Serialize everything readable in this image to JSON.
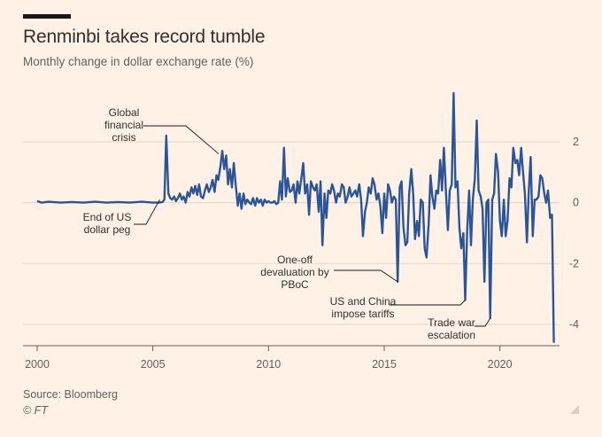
{
  "header": {
    "title": "Renminbi takes record tumble",
    "subtitle": "Monthly change in dollar exchange rate (%)"
  },
  "footer": {
    "source": "Source: Bloomberg",
    "credit": "© FT"
  },
  "colors": {
    "background": "#fff1e5",
    "line": "#2a5597",
    "grid": "#e3d9cf",
    "text": "#33302e",
    "muted": "#66605c"
  },
  "chart_data": {
    "type": "line",
    "title": "Renminbi takes record tumble",
    "subtitle": "Monthly change in dollar exchange rate (%)",
    "xlabel": "",
    "ylabel": "",
    "xlim": [
      2000,
      2022.5
    ],
    "ylim": [
      -4.7,
      3.6
    ],
    "x_ticks": [
      2000,
      2005,
      2010,
      2015,
      2020
    ],
    "y_ticks": [
      2,
      0,
      -2,
      -4
    ],
    "y_axis_side": "right",
    "grid": "horizontal",
    "series": [
      {
        "name": "",
        "color": "#2a5597",
        "points": [
          [
            2000.0,
            0.05
          ],
          [
            2000.2,
            0.0
          ],
          [
            2000.5,
            0.03
          ],
          [
            2001.0,
            0.0
          ],
          [
            2001.5,
            0.02
          ],
          [
            2002.0,
            0.0
          ],
          [
            2002.5,
            0.03
          ],
          [
            2003.0,
            0.0
          ],
          [
            2003.5,
            0.02
          ],
          [
            2004.0,
            0.0
          ],
          [
            2004.5,
            0.03
          ],
          [
            2005.0,
            0.0
          ],
          [
            2005.25,
            0.0
          ],
          [
            2005.42,
            0.02
          ],
          [
            2005.5,
            0.1
          ],
          [
            2005.58,
            2.2
          ],
          [
            2005.67,
            0.3
          ],
          [
            2005.75,
            0.15
          ],
          [
            2005.83,
            0.1
          ],
          [
            2005.92,
            0.2
          ],
          [
            2006.0,
            0.05
          ],
          [
            2006.08,
            0.15
          ],
          [
            2006.17,
            0.3
          ],
          [
            2006.25,
            0.1
          ],
          [
            2006.33,
            0.2
          ],
          [
            2006.42,
            0.0
          ],
          [
            2006.5,
            0.35
          ],
          [
            2006.58,
            0.2
          ],
          [
            2006.67,
            0.5
          ],
          [
            2006.75,
            0.3
          ],
          [
            2006.83,
            0.55
          ],
          [
            2006.92,
            0.25
          ],
          [
            2007.0,
            0.6
          ],
          [
            2007.08,
            0.2
          ],
          [
            2007.17,
            0.15
          ],
          [
            2007.25,
            0.4
          ],
          [
            2007.33,
            0.6
          ],
          [
            2007.42,
            0.35
          ],
          [
            2007.5,
            0.5
          ],
          [
            2007.58,
            0.75
          ],
          [
            2007.67,
            0.35
          ],
          [
            2007.75,
            0.9
          ],
          [
            2007.83,
            0.75
          ],
          [
            2007.92,
            1.2
          ],
          [
            2008.0,
            1.7
          ],
          [
            2008.08,
            1.1
          ],
          [
            2008.17,
            1.55
          ],
          [
            2008.25,
            0.6
          ],
          [
            2008.33,
            1.1
          ],
          [
            2008.42,
            0.5
          ],
          [
            2008.5,
            1.3
          ],
          [
            2008.58,
            0.6
          ],
          [
            2008.67,
            -0.1
          ],
          [
            2008.75,
            0.3
          ],
          [
            2008.83,
            -0.2
          ],
          [
            2008.92,
            0.3
          ],
          [
            2009.0,
            -0.05
          ],
          [
            2009.08,
            0.1
          ],
          [
            2009.17,
            0.0
          ],
          [
            2009.25,
            -0.05
          ],
          [
            2009.33,
            0.15
          ],
          [
            2009.42,
            -0.1
          ],
          [
            2009.5,
            0.15
          ],
          [
            2009.58,
            0.0
          ],
          [
            2009.67,
            0.1
          ],
          [
            2009.75,
            -0.1
          ],
          [
            2009.83,
            0.1
          ],
          [
            2009.92,
            0.0
          ],
          [
            2010.0,
            0.05
          ],
          [
            2010.08,
            0.0
          ],
          [
            2010.17,
            0.0
          ],
          [
            2010.25,
            0.05
          ],
          [
            2010.33,
            -0.05
          ],
          [
            2010.42,
            0.0
          ],
          [
            2010.5,
            0.7
          ],
          [
            2010.58,
            0.1
          ],
          [
            2010.67,
            1.8
          ],
          [
            2010.75,
            0.2
          ],
          [
            2010.83,
            0.8
          ],
          [
            2010.92,
            0.35
          ],
          [
            2011.0,
            0.4
          ],
          [
            2011.08,
            0.6
          ],
          [
            2011.17,
            0.0
          ],
          [
            2011.25,
            0.7
          ],
          [
            2011.33,
            0.3
          ],
          [
            2011.42,
            0.8
          ],
          [
            2011.5,
            1.3
          ],
          [
            2011.58,
            0.3
          ],
          [
            2011.67,
            0.6
          ],
          [
            2011.75,
            -0.4
          ],
          [
            2011.83,
            0.7
          ],
          [
            2011.92,
            0.5
          ],
          [
            2012.0,
            0.4
          ],
          [
            2012.08,
            0.6
          ],
          [
            2012.17,
            -0.3
          ],
          [
            2012.25,
            0.7
          ],
          [
            2012.33,
            -1.4
          ],
          [
            2012.42,
            0.3
          ],
          [
            2012.5,
            -0.5
          ],
          [
            2012.58,
            0.4
          ],
          [
            2012.67,
            0.3
          ],
          [
            2012.75,
            0.6
          ],
          [
            2012.83,
            0.4
          ],
          [
            2012.92,
            0.0
          ],
          [
            2013.0,
            0.3
          ],
          [
            2013.08,
            0.2
          ],
          [
            2013.17,
            0.6
          ],
          [
            2013.25,
            0.5
          ],
          [
            2013.33,
            0.0
          ],
          [
            2013.42,
            0.2
          ],
          [
            2013.5,
            0.5
          ],
          [
            2013.58,
            0.2
          ],
          [
            2013.67,
            0.3
          ],
          [
            2013.75,
            0.4
          ],
          [
            2013.83,
            0.2
          ],
          [
            2013.92,
            0.6
          ],
          [
            2014.0,
            0.1
          ],
          [
            2014.08,
            -1.1
          ],
          [
            2014.17,
            -0.3
          ],
          [
            2014.25,
            0.0
          ],
          [
            2014.33,
            0.5
          ],
          [
            2014.42,
            0.3
          ],
          [
            2014.5,
            0.8
          ],
          [
            2014.58,
            0.6
          ],
          [
            2014.67,
            0.1
          ],
          [
            2014.75,
            0.3
          ],
          [
            2014.83,
            -0.1
          ],
          [
            2014.92,
            -1.0
          ],
          [
            2015.0,
            0.3
          ],
          [
            2015.08,
            -0.5
          ],
          [
            2015.17,
            0.6
          ],
          [
            2015.25,
            0.4
          ],
          [
            2015.33,
            0.0
          ],
          [
            2015.42,
            0.2
          ],
          [
            2015.5,
            0.1
          ],
          [
            2015.58,
            -2.6
          ],
          [
            2015.67,
            0.5
          ],
          [
            2015.75,
            0.7
          ],
          [
            2015.83,
            -0.8
          ],
          [
            2015.92,
            -1.4
          ],
          [
            2016.0,
            -1.3
          ],
          [
            2016.08,
            0.3
          ],
          [
            2016.17,
            1.1
          ],
          [
            2016.25,
            0.3
          ],
          [
            2016.33,
            -1.2
          ],
          [
            2016.42,
            -0.6
          ],
          [
            2016.5,
            -1.1
          ],
          [
            2016.58,
            0.1
          ],
          [
            2016.67,
            0.0
          ],
          [
            2016.75,
            -1.5
          ],
          [
            2016.83,
            -1.8
          ],
          [
            2016.92,
            -0.7
          ],
          [
            2017.0,
            0.9
          ],
          [
            2017.08,
            0.2
          ],
          [
            2017.17,
            -0.2
          ],
          [
            2017.25,
            0.4
          ],
          [
            2017.33,
            0.3
          ],
          [
            2017.42,
            1.4
          ],
          [
            2017.5,
            0.4
          ],
          [
            2017.58,
            1.8
          ],
          [
            2017.67,
            0.3
          ],
          [
            2017.75,
            -0.9
          ],
          [
            2017.83,
            0.4
          ],
          [
            2017.92,
            0.6
          ],
          [
            2018.0,
            3.6
          ],
          [
            2018.08,
            0.5
          ],
          [
            2018.17,
            0.7
          ],
          [
            2018.25,
            -0.8
          ],
          [
            2018.33,
            -1.5
          ],
          [
            2018.42,
            -1.0
          ],
          [
            2018.5,
            -3.2
          ],
          [
            2018.58,
            -1.0
          ],
          [
            2018.67,
            0.4
          ],
          [
            2018.75,
            -1.4
          ],
          [
            2018.83,
            0.1
          ],
          [
            2018.92,
            0.8
          ],
          [
            2019.0,
            2.7
          ],
          [
            2019.08,
            0.4
          ],
          [
            2019.17,
            0.2
          ],
          [
            2019.25,
            -0.2
          ],
          [
            2019.33,
            -2.6
          ],
          [
            2019.42,
            0.0
          ],
          [
            2019.5,
            0.1
          ],
          [
            2019.58,
            -3.8
          ],
          [
            2019.67,
            0.1
          ],
          [
            2019.75,
            0.3
          ],
          [
            2019.83,
            1.6
          ],
          [
            2019.92,
            1.0
          ],
          [
            2020.0,
            -0.6
          ],
          [
            2020.08,
            -1.1
          ],
          [
            2020.17,
            0.1
          ],
          [
            2020.25,
            -1.1
          ],
          [
            2020.33,
            -0.6
          ],
          [
            2020.42,
            0.8
          ],
          [
            2020.5,
            0.5
          ],
          [
            2020.58,
            1.8
          ],
          [
            2020.67,
            1.3
          ],
          [
            2020.75,
            1.4
          ],
          [
            2020.83,
            0.9
          ],
          [
            2020.92,
            1.8
          ],
          [
            2021.0,
            1.0
          ],
          [
            2021.08,
            0.3
          ],
          [
            2021.17,
            -1.3
          ],
          [
            2021.25,
            0.4
          ],
          [
            2021.33,
            1.5
          ],
          [
            2021.42,
            -1.1
          ],
          [
            2021.5,
            0.1
          ],
          [
            2021.58,
            0.1
          ],
          [
            2021.67,
            0.2
          ],
          [
            2021.75,
            0.9
          ],
          [
            2021.83,
            0.8
          ],
          [
            2021.92,
            0.3
          ],
          [
            2022.0,
            0.0
          ],
          [
            2022.08,
            0.4
          ],
          [
            2022.17,
            -0.5
          ],
          [
            2022.25,
            -0.4
          ],
          [
            2022.33,
            -4.6
          ]
        ]
      }
    ],
    "annotations": [
      {
        "lines": [
          "Global",
          "financial",
          "crisis"
        ],
        "target": [
          2007.85,
          1.6
        ]
      },
      {
        "lines": [
          "End of US",
          "dollar peg"
        ],
        "target": [
          2005.3,
          0.1
        ]
      },
      {
        "lines": [
          "One-off",
          "devaluation by",
          "PBoC"
        ],
        "target": [
          2015.58,
          -2.6
        ]
      },
      {
        "lines": [
          "US and China",
          "impose tariffs"
        ],
        "target": [
          2018.5,
          -3.2
        ]
      },
      {
        "lines": [
          "Trade war",
          "escalation"
        ],
        "target": [
          2019.58,
          -3.8
        ]
      }
    ]
  }
}
